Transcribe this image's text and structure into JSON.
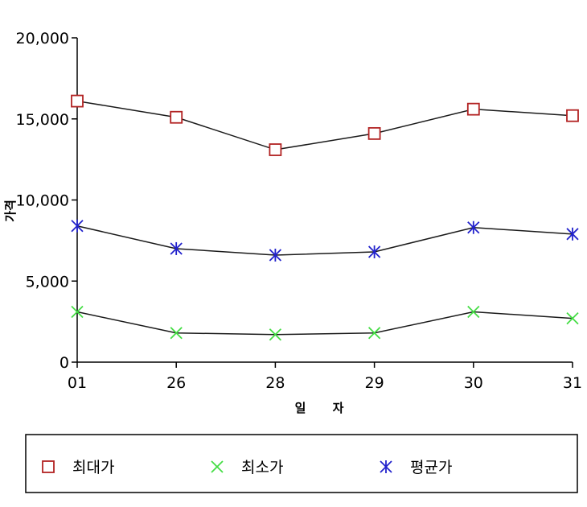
{
  "chart_data": {
    "type": "line",
    "title": "",
    "xlabel": "일 자",
    "ylabel": "가격",
    "categories": [
      "01",
      "26",
      "28",
      "29",
      "30",
      "31"
    ],
    "ylim": [
      0,
      20000
    ],
    "yticks": [
      0,
      5000,
      10000,
      15000,
      20000
    ],
    "ytick_labels": [
      "0",
      "5,000",
      "10,000",
      "15,000",
      "20,000"
    ],
    "grid": false,
    "legend_position": "bottom",
    "line_color": "#1a1a1a",
    "series": [
      {
        "name": "최대가",
        "marker": "square",
        "color": "#b22222",
        "values": [
          16100,
          15100,
          13100,
          14100,
          15600,
          15200
        ]
      },
      {
        "name": "최소가",
        "marker": "x",
        "color": "#44dd44",
        "values": [
          3100,
          1800,
          1700,
          1800,
          3100,
          2700
        ]
      },
      {
        "name": "평균가",
        "marker": "asterisk",
        "color": "#2222cc",
        "values": [
          8400,
          7000,
          6600,
          6800,
          8300,
          7900
        ]
      }
    ]
  }
}
